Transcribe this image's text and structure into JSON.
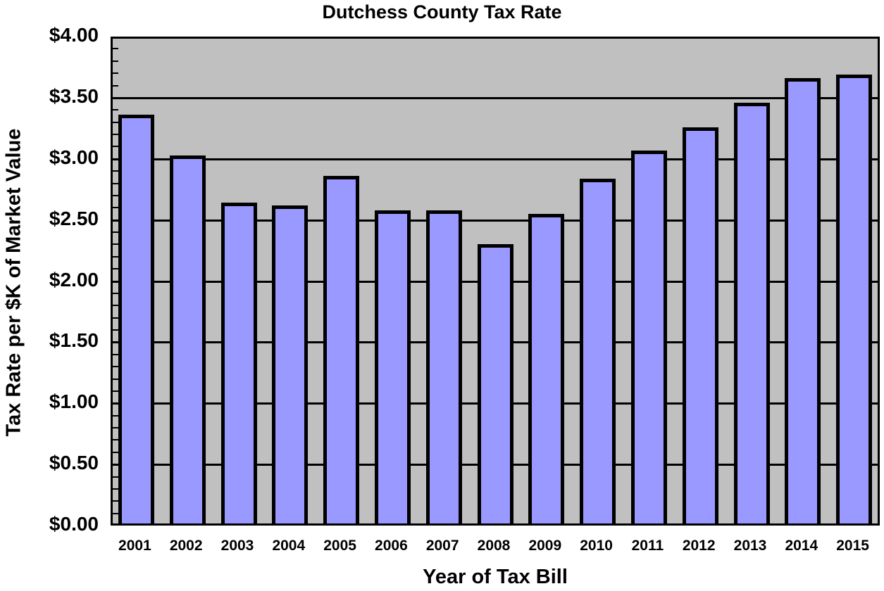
{
  "chart_data": {
    "type": "bar",
    "title": "Dutchess County Tax Rate",
    "xlabel": "Year of Tax Bill",
    "ylabel": "Tax Rate per $K of Market Value",
    "categories": [
      "2001",
      "2002",
      "2003",
      "2004",
      "2005",
      "2006",
      "2007",
      "2008",
      "2009",
      "2010",
      "2011",
      "2012",
      "2013",
      "2014",
      "2015"
    ],
    "values": [
      3.36,
      3.03,
      2.64,
      2.62,
      2.86,
      2.58,
      2.58,
      2.3,
      2.55,
      2.84,
      3.07,
      3.26,
      3.46,
      3.66,
      3.69
    ],
    "ylim": [
      0,
      4.0
    ],
    "yticks": [
      "$0.00",
      "$0.50",
      "$1.00",
      "$1.50",
      "$2.00",
      "$2.50",
      "$3.00",
      "$3.50",
      "$4.00"
    ],
    "ytick_values": [
      0,
      0.5,
      1.0,
      1.5,
      2.0,
      2.5,
      3.0,
      3.5,
      4.0
    ],
    "minor_tick_step": 0.1,
    "grid": true,
    "legend": null,
    "colors": {
      "bar_fill": "#9999ff",
      "bar_border": "#000000",
      "plot_bg": "#c0c0c0",
      "gridline": "#000000"
    }
  }
}
